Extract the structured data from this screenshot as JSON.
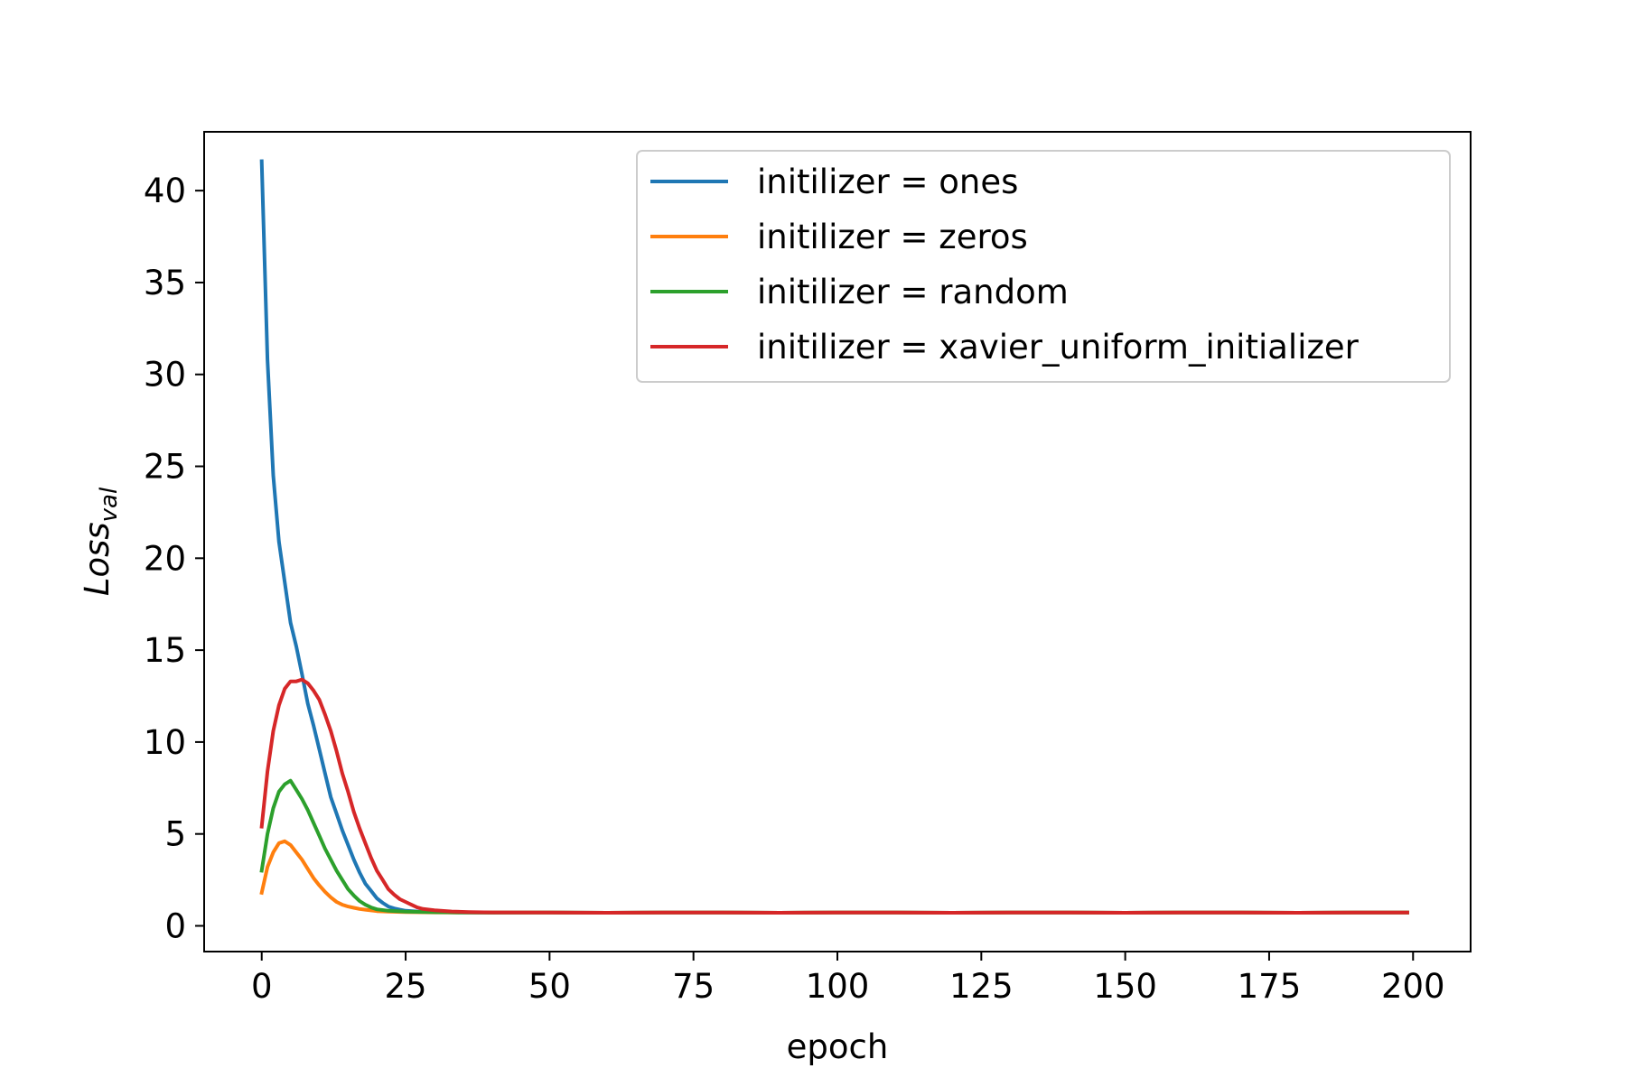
{
  "chart_data": {
    "type": "line",
    "title": "",
    "xlabel": "epoch",
    "ylabel": {
      "main": "Loss",
      "subscript": "val"
    },
    "xlim": [
      -10,
      210
    ],
    "ylim": [
      -1.4,
      43.2
    ],
    "xticks": [
      0,
      25,
      50,
      75,
      100,
      125,
      150,
      175,
      200
    ],
    "yticks": [
      0,
      5,
      10,
      15,
      20,
      25,
      30,
      35,
      40
    ],
    "grid": false,
    "legend_position": "top-right",
    "series": [
      {
        "name": "initilizer = ones",
        "color": "#1f77b4",
        "points": [
          [
            0,
            41.6
          ],
          [
            1,
            30.8
          ],
          [
            2,
            24.5
          ],
          [
            3,
            20.9
          ],
          [
            4,
            18.7
          ],
          [
            5,
            16.5
          ],
          [
            6,
            15.2
          ],
          [
            7,
            13.7
          ],
          [
            8,
            12.1
          ],
          [
            9,
            10.9
          ],
          [
            10,
            9.6
          ],
          [
            11,
            8.3
          ],
          [
            12,
            7.0
          ],
          [
            13,
            6.1
          ],
          [
            14,
            5.2
          ],
          [
            15,
            4.4
          ],
          [
            16,
            3.6
          ],
          [
            17,
            2.9
          ],
          [
            18,
            2.3
          ],
          [
            19,
            1.9
          ],
          [
            20,
            1.5
          ],
          [
            21,
            1.25
          ],
          [
            22,
            1.05
          ],
          [
            23,
            0.95
          ],
          [
            24,
            0.88
          ],
          [
            25,
            0.82
          ],
          [
            27,
            0.78
          ],
          [
            30,
            0.75
          ],
          [
            35,
            0.72
          ],
          [
            40,
            0.71
          ],
          [
            50,
            0.72
          ],
          [
            60,
            0.71
          ],
          [
            70,
            0.72
          ],
          [
            80,
            0.72
          ],
          [
            90,
            0.71
          ],
          [
            100,
            0.72
          ],
          [
            110,
            0.72
          ],
          [
            120,
            0.71
          ],
          [
            130,
            0.72
          ],
          [
            140,
            0.72
          ],
          [
            150,
            0.71
          ],
          [
            160,
            0.72
          ],
          [
            170,
            0.72
          ],
          [
            180,
            0.71
          ],
          [
            190,
            0.72
          ],
          [
            199,
            0.72
          ]
        ]
      },
      {
        "name": "initilizer = zeros",
        "color": "#ff7f0e",
        "points": [
          [
            0,
            1.8
          ],
          [
            1,
            3.2
          ],
          [
            2,
            4.0
          ],
          [
            3,
            4.5
          ],
          [
            4,
            4.6
          ],
          [
            5,
            4.4
          ],
          [
            6,
            4.0
          ],
          [
            7,
            3.6
          ],
          [
            8,
            3.1
          ],
          [
            9,
            2.6
          ],
          [
            10,
            2.2
          ],
          [
            11,
            1.85
          ],
          [
            12,
            1.55
          ],
          [
            13,
            1.3
          ],
          [
            14,
            1.15
          ],
          [
            15,
            1.05
          ],
          [
            16,
            0.98
          ],
          [
            17,
            0.92
          ],
          [
            18,
            0.88
          ],
          [
            19,
            0.84
          ],
          [
            20,
            0.8
          ],
          [
            22,
            0.77
          ],
          [
            25,
            0.75
          ],
          [
            30,
            0.73
          ],
          [
            40,
            0.72
          ],
          [
            50,
            0.72
          ],
          [
            60,
            0.71
          ],
          [
            70,
            0.72
          ],
          [
            80,
            0.72
          ],
          [
            90,
            0.71
          ],
          [
            100,
            0.72
          ],
          [
            110,
            0.72
          ],
          [
            120,
            0.71
          ],
          [
            130,
            0.72
          ],
          [
            140,
            0.72
          ],
          [
            150,
            0.71
          ],
          [
            160,
            0.72
          ],
          [
            170,
            0.72
          ],
          [
            180,
            0.71
          ],
          [
            190,
            0.72
          ],
          [
            199,
            0.72
          ]
        ]
      },
      {
        "name": "initilizer = random",
        "color": "#2ca02c",
        "points": [
          [
            0,
            3.0
          ],
          [
            1,
            5.0
          ],
          [
            2,
            6.4
          ],
          [
            3,
            7.3
          ],
          [
            4,
            7.7
          ],
          [
            5,
            7.9
          ],
          [
            6,
            7.4
          ],
          [
            7,
            6.9
          ],
          [
            8,
            6.3
          ],
          [
            9,
            5.6
          ],
          [
            10,
            4.9
          ],
          [
            11,
            4.2
          ],
          [
            12,
            3.6
          ],
          [
            13,
            3.0
          ],
          [
            14,
            2.5
          ],
          [
            15,
            2.0
          ],
          [
            16,
            1.65
          ],
          [
            17,
            1.35
          ],
          [
            18,
            1.15
          ],
          [
            19,
            1.0
          ],
          [
            20,
            0.9
          ],
          [
            22,
            0.82
          ],
          [
            25,
            0.77
          ],
          [
            30,
            0.74
          ],
          [
            40,
            0.72
          ],
          [
            50,
            0.72
          ],
          [
            60,
            0.71
          ],
          [
            70,
            0.72
          ],
          [
            80,
            0.72
          ],
          [
            90,
            0.71
          ],
          [
            100,
            0.72
          ],
          [
            110,
            0.72
          ],
          [
            120,
            0.71
          ],
          [
            130,
            0.72
          ],
          [
            140,
            0.72
          ],
          [
            150,
            0.71
          ],
          [
            160,
            0.72
          ],
          [
            170,
            0.72
          ],
          [
            180,
            0.71
          ],
          [
            190,
            0.72
          ],
          [
            199,
            0.72
          ]
        ]
      },
      {
        "name": "initilizer = xavier_uniform_initializer",
        "color": "#d62728",
        "points": [
          [
            0,
            5.4
          ],
          [
            1,
            8.4
          ],
          [
            2,
            10.6
          ],
          [
            3,
            12.0
          ],
          [
            4,
            12.9
          ],
          [
            5,
            13.3
          ],
          [
            6,
            13.3
          ],
          [
            7,
            13.4
          ],
          [
            8,
            13.2
          ],
          [
            9,
            12.8
          ],
          [
            10,
            12.3
          ],
          [
            11,
            11.5
          ],
          [
            12,
            10.6
          ],
          [
            13,
            9.5
          ],
          [
            14,
            8.3
          ],
          [
            15,
            7.3
          ],
          [
            16,
            6.2
          ],
          [
            17,
            5.3
          ],
          [
            18,
            4.5
          ],
          [
            19,
            3.7
          ],
          [
            20,
            3.0
          ],
          [
            21,
            2.5
          ],
          [
            22,
            2.0
          ],
          [
            23,
            1.7
          ],
          [
            24,
            1.45
          ],
          [
            25,
            1.3
          ],
          [
            26,
            1.15
          ],
          [
            27,
            1.0
          ],
          [
            28,
            0.92
          ],
          [
            30,
            0.85
          ],
          [
            33,
            0.78
          ],
          [
            36,
            0.75
          ],
          [
            40,
            0.73
          ],
          [
            50,
            0.72
          ],
          [
            60,
            0.71
          ],
          [
            70,
            0.72
          ],
          [
            80,
            0.72
          ],
          [
            90,
            0.71
          ],
          [
            100,
            0.72
          ],
          [
            110,
            0.72
          ],
          [
            120,
            0.71
          ],
          [
            130,
            0.72
          ],
          [
            140,
            0.72
          ],
          [
            150,
            0.71
          ],
          [
            160,
            0.72
          ],
          [
            170,
            0.72
          ],
          [
            180,
            0.71
          ],
          [
            190,
            0.72
          ],
          [
            199,
            0.72
          ]
        ]
      }
    ]
  }
}
